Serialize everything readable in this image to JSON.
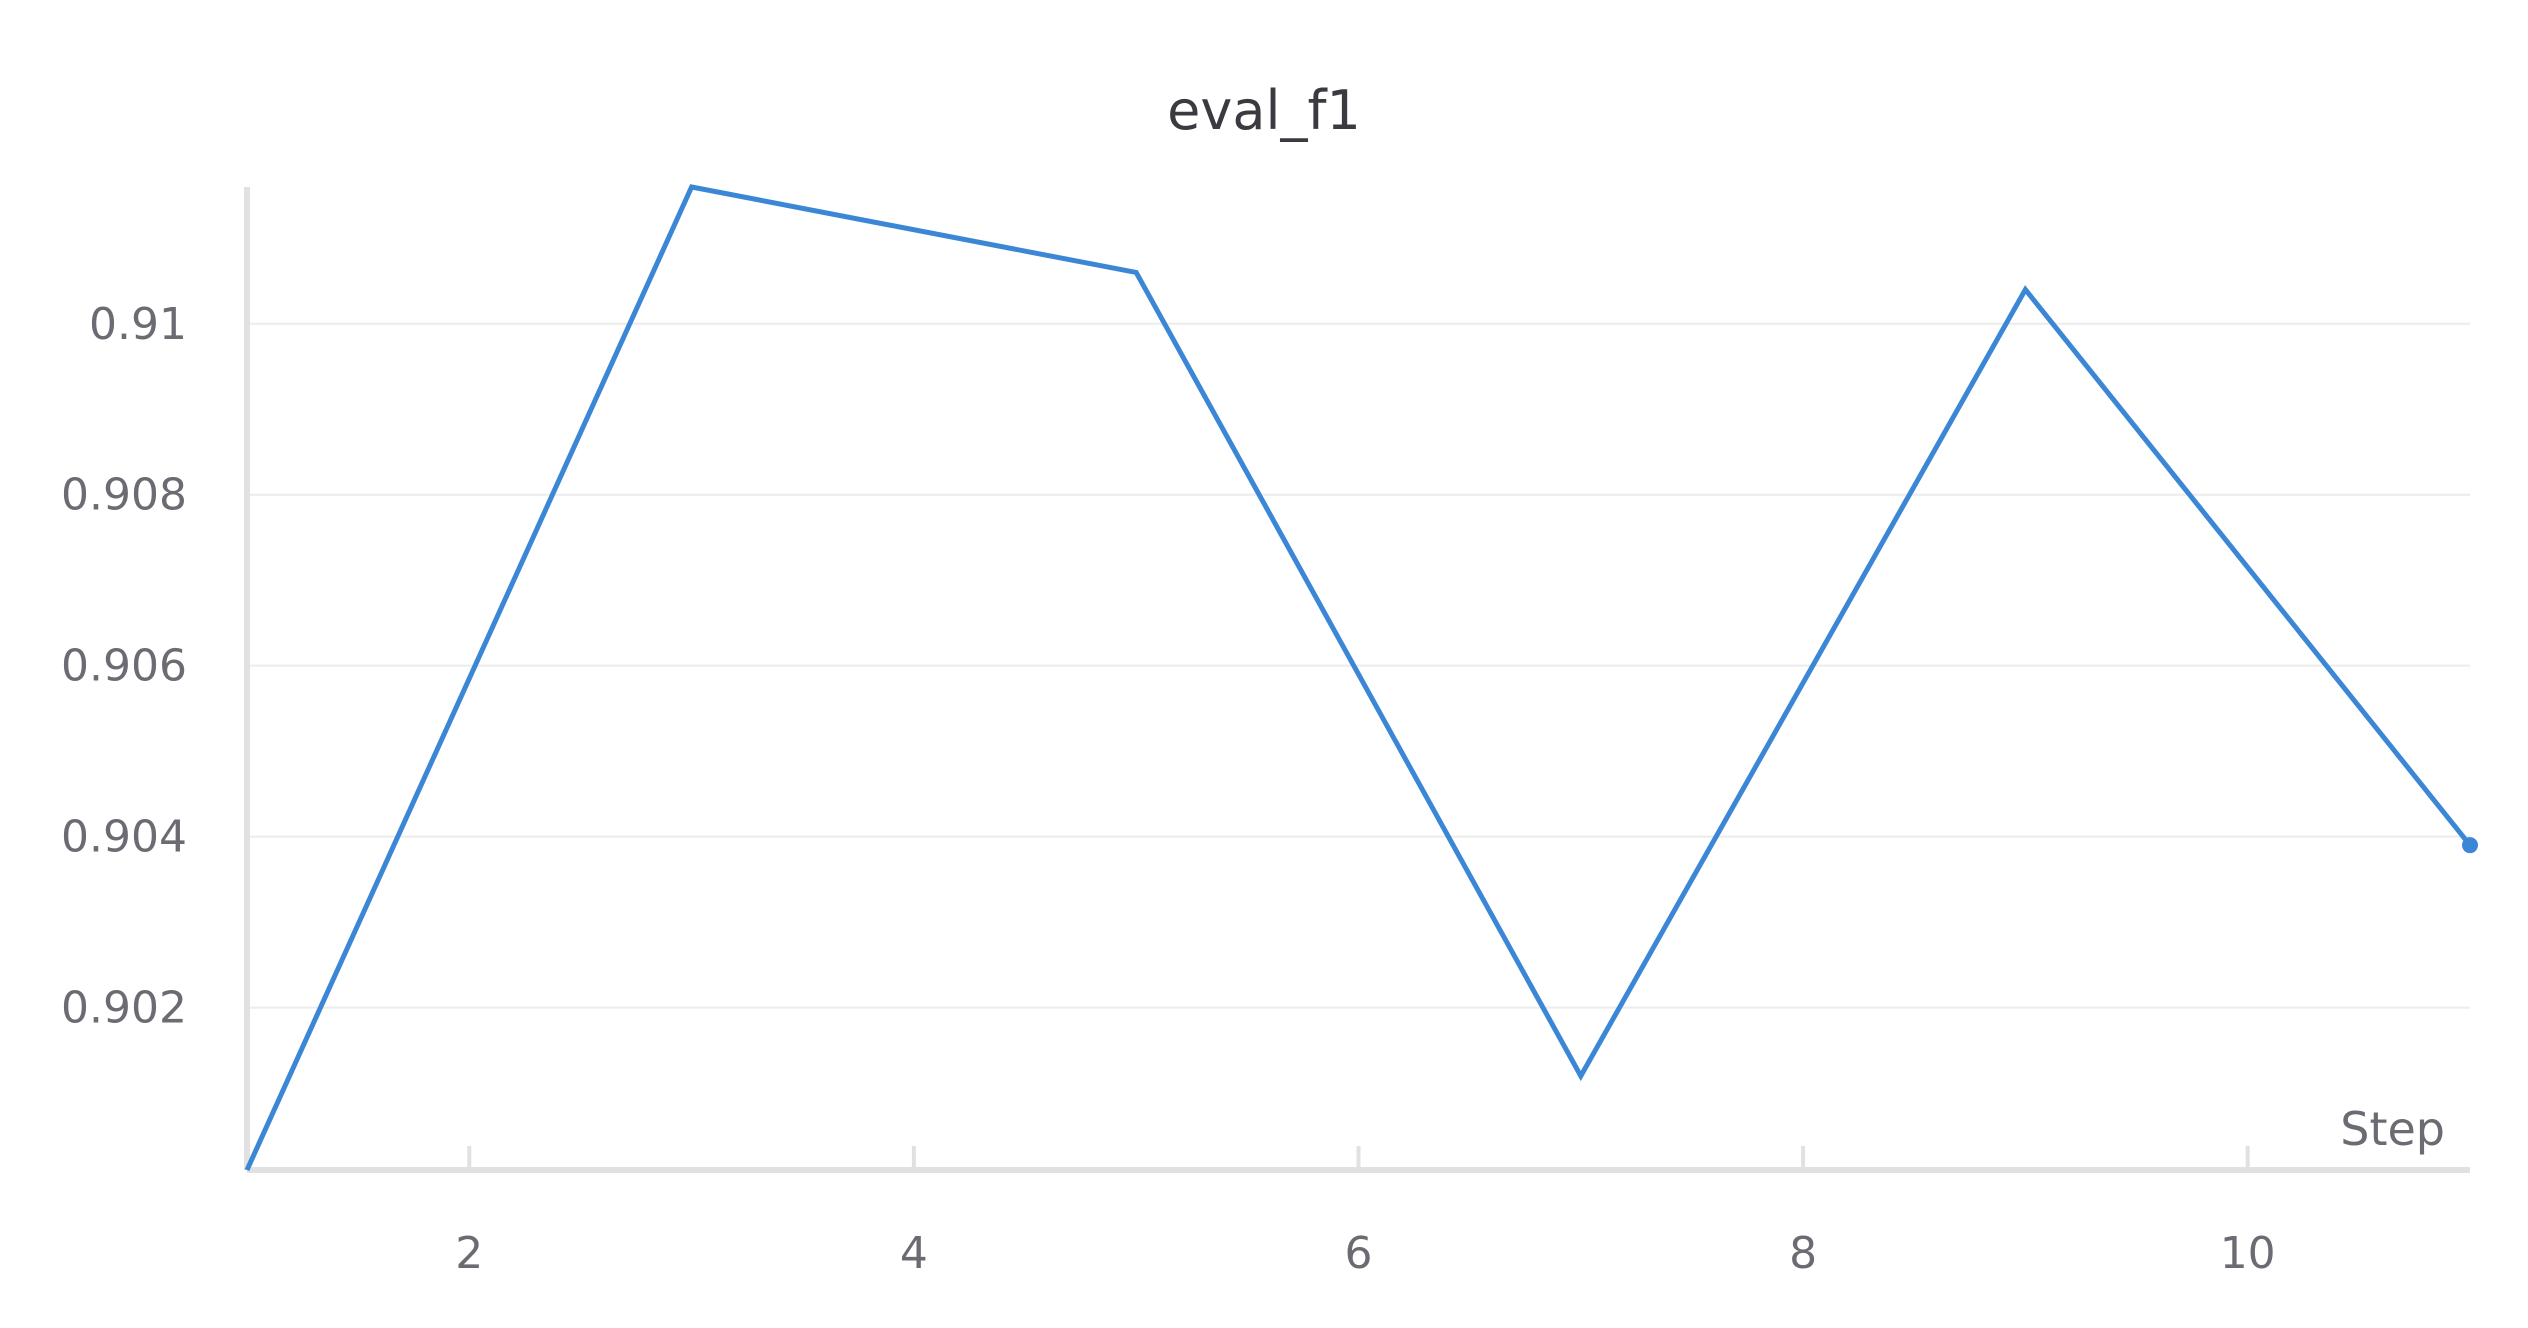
{
  "chart_data": {
    "type": "line",
    "title": "eval_f1",
    "xlabel": "Step",
    "ylabel": "",
    "x": [
      1,
      3,
      5,
      7,
      9,
      11
    ],
    "series": [
      {
        "values": [
          0.9001,
          0.9116,
          0.9106,
          0.9012,
          0.9104,
          0.9039
        ]
      }
    ],
    "xlim": [
      1,
      11
    ],
    "ylim": [
      0.9001,
      0.9116
    ],
    "xticks": [
      2,
      4,
      6,
      8,
      10
    ],
    "xtick_labels": [
      "2",
      "4",
      "6",
      "8",
      "10"
    ],
    "yticks": [
      0.902,
      0.904,
      0.906,
      0.908,
      0.91
    ],
    "ytick_labels": [
      "0.902",
      "0.904",
      "0.906",
      "0.908",
      "0.91"
    ],
    "grid": true,
    "last_point_marker": true,
    "colors": {
      "line": "#3b87d6",
      "grid": "#ececec",
      "axis": "#e1e1e1",
      "tick_text": "#6b6b73",
      "title": "#3a3a40"
    }
  }
}
